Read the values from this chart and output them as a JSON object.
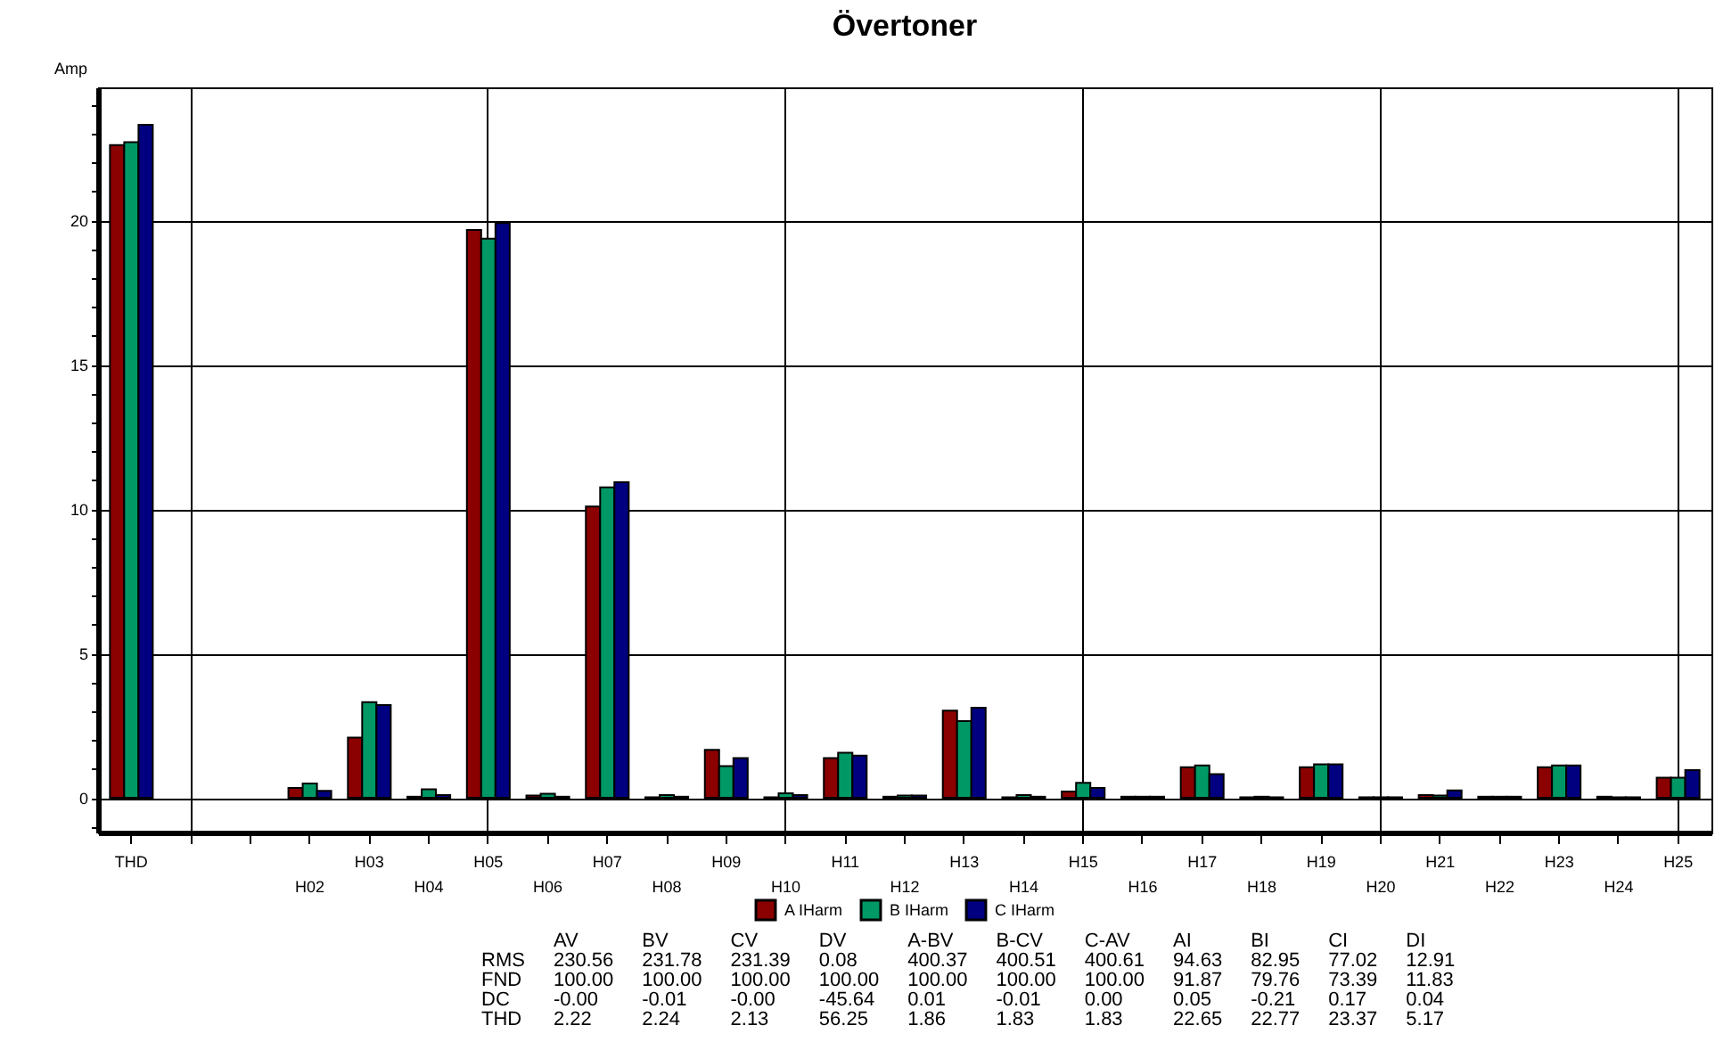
{
  "chart_data": {
    "type": "bar",
    "title": "Övertoner",
    "ylabel": "Amp",
    "categories": [
      "THD",
      null,
      null,
      "H02",
      "H03",
      "H04",
      "H05",
      "H06",
      "H07",
      "H08",
      "H09",
      "H10",
      "H11",
      "H12",
      "H13",
      "H14",
      "H15",
      "H16",
      "H17",
      "H18",
      "H19",
      "H20",
      "H21",
      "H22",
      "H23",
      "H24",
      "H25"
    ],
    "series": [
      {
        "name": "A IHarm",
        "color": "#8b0000",
        "values": [
          22.6,
          null,
          null,
          0.34,
          2.09,
          0.04,
          19.66,
          0.08,
          10.09,
          0.02,
          1.66,
          0.02,
          1.38,
          0.04,
          3.02,
          0.02,
          0.22,
          0.04,
          1.06,
          0.02,
          1.06,
          0.02,
          0.1,
          0.04,
          1.06,
          0.04,
          0.7
        ]
      },
      {
        "name": "B IHarm",
        "color": "#009966",
        "values": [
          22.7,
          null,
          null,
          0.5,
          3.31,
          0.3,
          19.36,
          0.14,
          10.75,
          0.1,
          1.1,
          0.16,
          1.56,
          0.08,
          2.66,
          0.1,
          0.52,
          0.04,
          1.12,
          0.04,
          1.16,
          0.02,
          0.08,
          0.04,
          1.12,
          0.02,
          0.7
        ]
      },
      {
        "name": "C IHarm",
        "color": "#000080",
        "values": [
          23.3,
          null,
          null,
          0.24,
          3.21,
          0.1,
          19.9,
          0.04,
          10.93,
          0.04,
          1.38,
          0.1,
          1.46,
          0.08,
          3.12,
          0.04,
          0.34,
          0.04,
          0.82,
          0.02,
          1.16,
          0.02,
          0.26,
          0.04,
          1.12,
          0.02,
          0.96
        ]
      }
    ],
    "ylim": [
      -1.2,
      24.6
    ],
    "yticks": [
      {
        "value": -1,
        "label": null
      },
      0,
      {
        "value": 1,
        "label": null
      },
      {
        "value": 2,
        "label": null
      },
      {
        "value": 3,
        "label": null
      },
      {
        "value": 4,
        "label": null
      },
      5,
      {
        "value": 6,
        "label": null
      },
      {
        "value": 7,
        "label": null
      },
      {
        "value": 8,
        "label": null
      },
      {
        "value": 9,
        "label": null
      },
      10,
      {
        "value": 11,
        "label": null
      },
      {
        "value": 12,
        "label": null
      },
      {
        "value": 13,
        "label": null
      },
      {
        "value": 14,
        "label": null
      },
      15,
      {
        "value": 16,
        "label": null
      },
      {
        "value": 17,
        "label": null
      },
      {
        "value": 18,
        "label": null
      },
      {
        "value": 19,
        "label": null
      },
      20,
      {
        "value": 21,
        "label": null
      },
      {
        "value": 22,
        "label": null
      },
      {
        "value": 23,
        "label": null
      },
      {
        "value": 24,
        "label": null
      }
    ],
    "grid": true,
    "legend": "bottom",
    "annotations": [
      "AV BV CV DV A-BV B-CV C-AV AI BI CI DI",
      "RMS 230.56 231.78 231.39 0.08 400.37 400.51 400.61 94.63 82.95 77.02 12.91",
      "FND 100.00 100.00 100.00 100.00 100.00 100.00 100.00 91.87 79.76 73.39 11.83",
      "DC -0.00 -0.01 -0.00 -45.64 0.01 -0.01 0.00 0.05 -0.21 0.17 0.04",
      "THD 2.22 2.24 2.13 56.25 1.86 1.83 1.83 22.65 22.77 23.37 5.17"
    ]
  }
}
